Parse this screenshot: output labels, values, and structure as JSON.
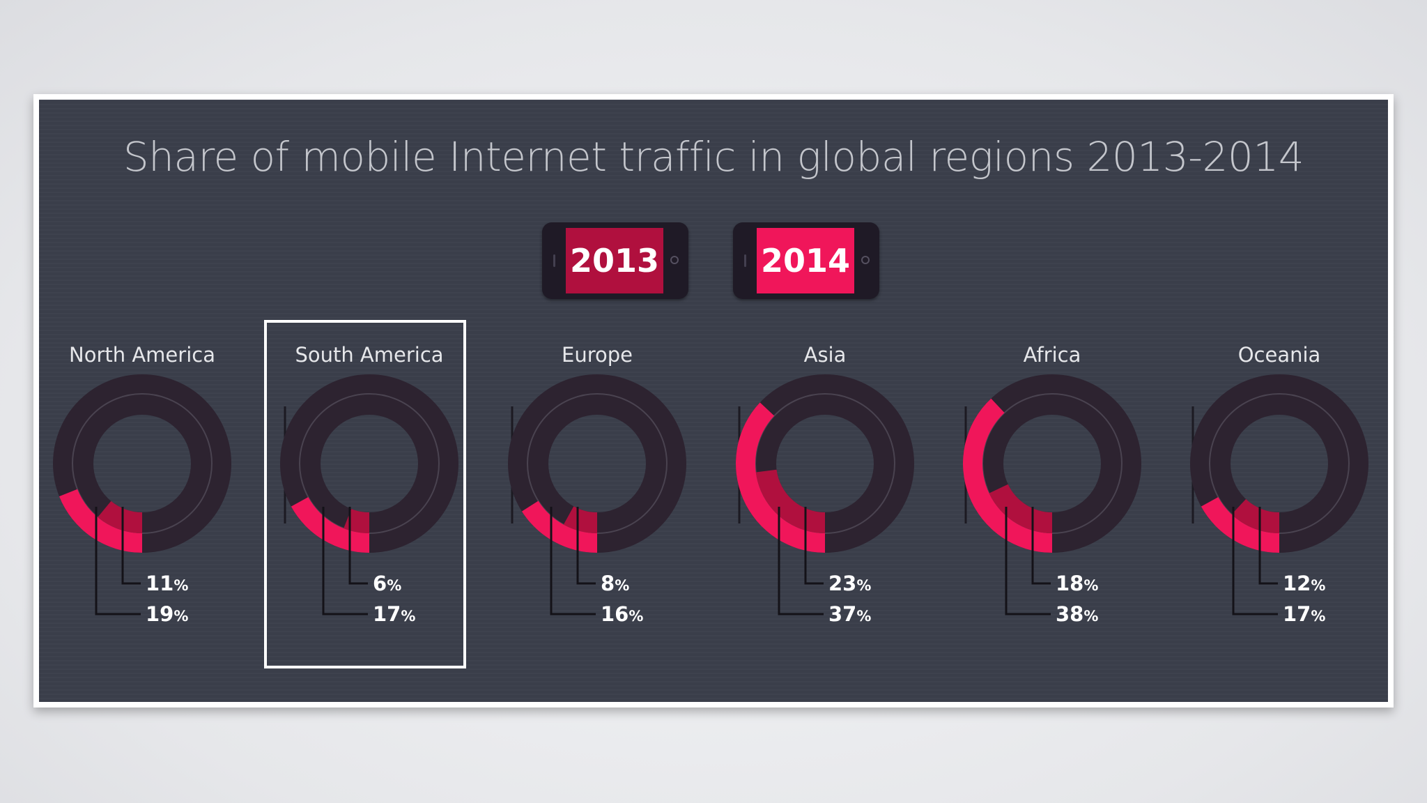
{
  "chart_data": {
    "type": "donut",
    "title": "Share of mobile Internet traffic in global regions 2013-2014",
    "legend": [
      {
        "label": "2013",
        "color": "#b0103e"
      },
      {
        "label": "2014",
        "color": "#f0165a"
      }
    ],
    "categories": [
      "North America",
      "South America",
      "Europe",
      "Asia",
      "Africa",
      "Oceania"
    ],
    "series": [
      {
        "name": "2013",
        "values": [
          11,
          6,
          8,
          23,
          18,
          12
        ]
      },
      {
        "name": "2014",
        "values": [
          19,
          17,
          16,
          37,
          38,
          17
        ]
      }
    ],
    "unit": "%",
    "highlighted_category": "South America"
  },
  "colors": {
    "panel": "#3a3e4a",
    "ring_track": "#2d2330",
    "color_2013": "#b0103e",
    "color_2014": "#f0165a"
  }
}
